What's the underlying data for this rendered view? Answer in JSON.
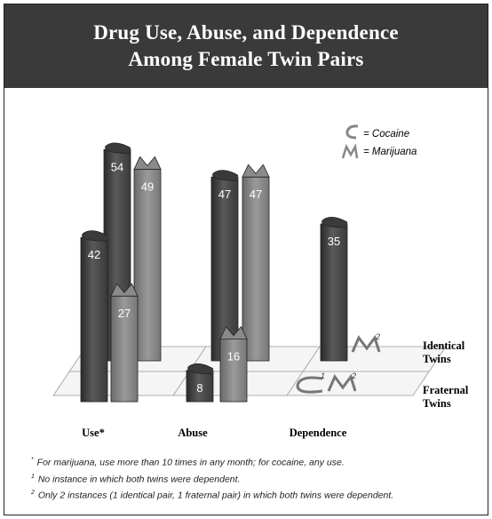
{
  "chart_data": {
    "type": "bar",
    "title_lines": [
      "Drug Use, Abuse, and Dependence",
      "Among Female Twin Pairs"
    ],
    "categories": [
      "Use*",
      "Abuse",
      "Dependence"
    ],
    "rows": [
      "Identical Twins",
      "Fraternal Twins"
    ],
    "row_label_lines": [
      [
        "Identical",
        "Twins"
      ],
      [
        "Fraternal",
        "Twins"
      ]
    ],
    "series": [
      {
        "name": "Cocaine",
        "symbol": "C",
        "color": "#4a4a4a"
      },
      {
        "name": "Marijuana",
        "symbol": "M",
        "color": "#7a7a7a"
      }
    ],
    "values": {
      "Identical Twins": {
        "Cocaine": [
          54,
          47,
          35
        ],
        "Marijuana": [
          49,
          47,
          null
        ]
      },
      "Fraternal Twins": {
        "Cocaine": [
          42,
          8,
          null
        ],
        "Marijuana": [
          27,
          16,
          null
        ]
      }
    },
    "markers": [
      {
        "row": "Identical Twins",
        "category": "Dependence",
        "series": "Marijuana",
        "symbol": "M",
        "footnote": "2"
      },
      {
        "row": "Fraternal Twins",
        "category": "Dependence",
        "series": "Cocaine",
        "symbol": "C",
        "footnote": "1"
      },
      {
        "row": "Fraternal Twins",
        "category": "Dependence",
        "series": "Marijuana",
        "symbol": "M",
        "footnote": "2"
      }
    ],
    "legend": {
      "position": "top-right",
      "items": [
        "= Cocaine",
        "= Marijuana"
      ]
    }
  },
  "footnotes": [
    {
      "mark": "*",
      "text": "For marijuana, use more than 10 times in any month; for cocaine, any use."
    },
    {
      "mark": "1",
      "text": "No instance in which both twins were dependent."
    },
    {
      "mark": "2",
      "text": "Only 2 instances (1 identical pair, 1 fraternal pair) in which both twins were dependent."
    }
  ]
}
